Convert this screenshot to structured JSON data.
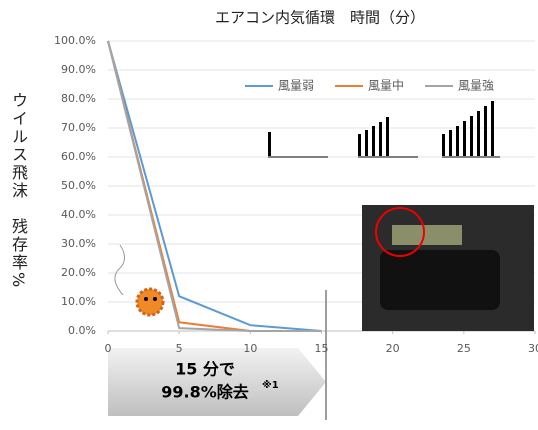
{
  "chart_data": {
    "type": "line",
    "title": "エアコン内気循環　時間（分）",
    "y_label": "ウイルス飛沫　残存率%",
    "x": [
      0,
      5,
      10,
      15
    ],
    "series": [
      {
        "name": "風量弱",
        "color": "#5b9bd5",
        "values": [
          100,
          12,
          2,
          0
        ]
      },
      {
        "name": "風量中",
        "color": "#ed7d31",
        "values": [
          100,
          3,
          0,
          0
        ]
      },
      {
        "name": "風量強",
        "color": "#a5a5a5",
        "values": [
          100,
          1,
          0,
          0
        ]
      }
    ],
    "xlim": [
      0,
      30
    ],
    "xticks": [
      0,
      5,
      10,
      15,
      20,
      25,
      30
    ],
    "ylim": [
      0,
      100
    ],
    "yticks": [
      {
        "value": 0,
        "label": "0.0%"
      },
      {
        "value": 10,
        "label": "10.0%"
      },
      {
        "value": 20,
        "label": "20.0%"
      },
      {
        "value": 30,
        "label": "30.0%"
      },
      {
        "value": 40,
        "label": "40.0%"
      },
      {
        "value": 50,
        "label": "50.0%"
      },
      {
        "value": 60,
        "label": "60.0%"
      },
      {
        "value": 70,
        "label": "70.0%"
      },
      {
        "value": 80,
        "label": "80.0%"
      },
      {
        "value": 90,
        "label": "90.0%"
      },
      {
        "value": 100,
        "label": "100.0%"
      }
    ],
    "grid": true,
    "legend": "upper right",
    "annotation": [
      "15 分で",
      "99.8%除去",
      "※1"
    ]
  }
}
